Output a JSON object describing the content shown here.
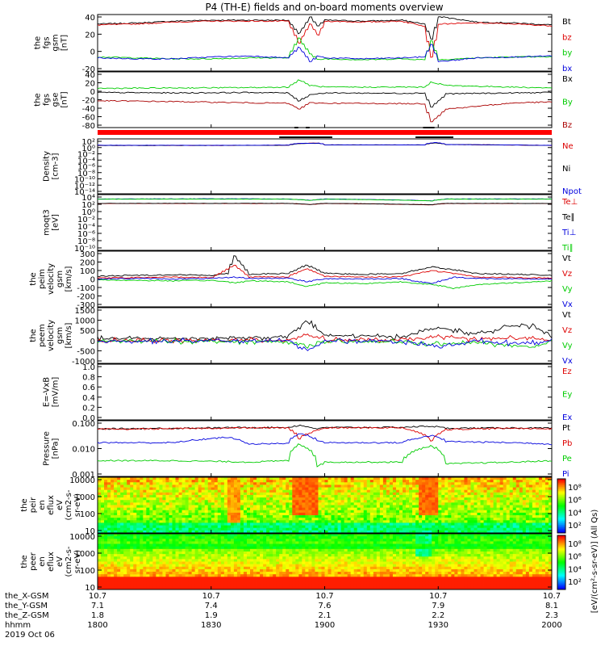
{
  "title": "P4 (TH-E) fields and on-board moments overview",
  "chart_data": [
    {
      "type": "line",
      "panel": "fgs-gsm",
      "ylabel": [
        "the",
        "fgs",
        "gsm",
        "[nT]"
      ],
      "ylim": [
        -20,
        40
      ],
      "yticks": [
        "40",
        "20",
        "0",
        "-20"
      ],
      "x_range_hhmm": [
        "1800",
        "2000"
      ],
      "series": [
        {
          "name": "Bt",
          "color": "#000000",
          "x": [
            1800,
            1810,
            1820,
            1830,
            1840,
            1850,
            1853,
            1856,
            1858,
            1900,
            1910,
            1920,
            1926,
            1928,
            1930,
            1940,
            1950,
            2000
          ],
          "y": [
            30,
            31,
            33,
            34,
            34,
            34,
            20,
            37,
            28,
            34,
            33,
            34,
            30,
            14,
            38,
            32,
            31,
            29
          ]
        },
        {
          "name": "bz",
          "color": "#dd0000",
          "x": [
            1800,
            1810,
            1820,
            1830,
            1840,
            1850,
            1853,
            1856,
            1858,
            1900,
            1910,
            1920,
            1926,
            1928,
            1930,
            1940,
            1950,
            2000
          ],
          "y": [
            29,
            30,
            32,
            33,
            33,
            33,
            10,
            30,
            18,
            33,
            32,
            33,
            28,
            -5,
            30,
            31,
            30,
            28
          ]
        },
        {
          "name": "by",
          "color": "#00cc00",
          "x": [
            1800,
            1810,
            1820,
            1830,
            1840,
            1850,
            1853,
            1856,
            1858,
            1900,
            1910,
            1920,
            1926,
            1928,
            1930,
            1940,
            1950,
            2000
          ],
          "y": [
            -5,
            -6,
            -7,
            -7,
            -6,
            -6,
            15,
            -2,
            -8,
            -7,
            -8,
            -7,
            -8,
            12,
            -8,
            -6,
            -5,
            -5
          ]
        },
        {
          "name": "bx",
          "color": "#0000dd",
          "x": [
            1800,
            1810,
            1820,
            1830,
            1840,
            1850,
            1853,
            1856,
            1858,
            1900,
            1910,
            1920,
            1926,
            1928,
            1930,
            1940,
            1950,
            2000
          ],
          "y": [
            -6,
            -7,
            -7,
            -5,
            -4,
            -6,
            5,
            -10,
            -4,
            -6,
            -7,
            -6,
            -5,
            8,
            -10,
            -6,
            -5,
            -4
          ]
        }
      ]
    },
    {
      "type": "line",
      "panel": "fgs-gse",
      "ylabel": [
        "the",
        "fgs",
        "gse",
        "[nT]"
      ],
      "ylim": [
        -90,
        45
      ],
      "yticks": [
        "40",
        "20",
        "0",
        "-20",
        "-40",
        "-60",
        "-80"
      ],
      "series": [
        {
          "name": "Bx",
          "color": "#000000",
          "x": [
            1800,
            1820,
            1840,
            1850,
            1853,
            1856,
            1900,
            1920,
            1926,
            1928,
            1932,
            1950,
            2000
          ],
          "y": [
            -5,
            -6,
            -5,
            -6,
            -25,
            -10,
            -6,
            -7,
            -6,
            -40,
            -8,
            -6,
            -5
          ]
        },
        {
          "name": "By",
          "color": "#00cc00",
          "x": [
            1800,
            1820,
            1840,
            1850,
            1853,
            1856,
            1900,
            1920,
            1926,
            1928,
            1932,
            1950,
            2000
          ],
          "y": [
            5,
            6,
            7,
            8,
            25,
            12,
            8,
            8,
            8,
            20,
            12,
            8,
            6
          ]
        },
        {
          "name": "Bz",
          "color": "#aa0000",
          "x": [
            1800,
            1820,
            1840,
            1850,
            1853,
            1856,
            1900,
            1920,
            1926,
            1928,
            1932,
            1950,
            2000
          ],
          "y": [
            -25,
            -27,
            -30,
            -31,
            -45,
            -30,
            -31,
            -32,
            -32,
            -75,
            -45,
            -30,
            -28
          ]
        }
      ]
    },
    {
      "type": "line",
      "panel": "density",
      "ylabel": [
        "Density",
        "[cm-3]"
      ],
      "yscale": "log",
      "yticks": [
        "10²",
        "10⁰",
        "10⁻²",
        "10⁻⁴",
        "10⁻⁶",
        "10⁻⁸",
        "10⁻¹⁰",
        "10⁻¹²",
        "10⁻¹⁴"
      ],
      "series": [
        {
          "name": "Ne",
          "color": "#dd0000",
          "x": [
            1800,
            1830,
            1850,
            1853,
            1858,
            1900,
            1926,
            1929,
            1932,
            2000
          ],
          "y": [
            1,
            1,
            1.2,
            5,
            6,
            1.5,
            1.5,
            8,
            2,
            1
          ]
        },
        {
          "name": "Ni",
          "color": "#000000",
          "x": [
            1800,
            1830,
            1850,
            1853,
            1858,
            1900,
            1926,
            1929,
            1932,
            2000
          ],
          "y": [
            1,
            1,
            1.2,
            4,
            5,
            1.5,
            1.5,
            7,
            2,
            1
          ]
        },
        {
          "name": "Npot",
          "color": "#0000dd",
          "x": [
            1800,
            1830,
            1850,
            1853,
            1858,
            1900,
            1926,
            1929,
            1932,
            2000
          ],
          "y": [
            1.2,
            1.1,
            1.3,
            5,
            6,
            1.6,
            1.6,
            9,
            2,
            1.1
          ]
        }
      ]
    },
    {
      "type": "line",
      "panel": "temperature",
      "ylabel": [
        "moqt3",
        "[eV]"
      ],
      "yscale": "log",
      "yticks": [
        "10⁴",
        "10²",
        "10⁰",
        "10⁻²",
        "10⁻⁴",
        "10⁻⁶",
        "10⁻⁸",
        "10⁻¹⁰"
      ],
      "series": [
        {
          "name": "Te⊥",
          "color": "#dd0000",
          "x": [
            1800,
            1830,
            1850,
            1856,
            1900,
            1928,
            1932,
            2000
          ],
          "y": [
            20,
            20,
            20,
            10,
            20,
            8,
            20,
            20
          ]
        },
        {
          "name": "Te∥",
          "color": "#000000",
          "x": [
            1800,
            1830,
            1850,
            1856,
            1900,
            1928,
            1932,
            2000
          ],
          "y": [
            22,
            22,
            22,
            11,
            22,
            9,
            22,
            22
          ]
        },
        {
          "name": "Ti⊥",
          "color": "#0000dd",
          "x": [
            1800,
            1830,
            1850,
            1856,
            1900,
            1928,
            1932,
            2000
          ],
          "y": [
            400,
            450,
            400,
            150,
            400,
            120,
            400,
            420
          ]
        },
        {
          "name": "Ti∥",
          "color": "#00cc00",
          "x": [
            1800,
            1830,
            1850,
            1856,
            1900,
            1928,
            1932,
            2000
          ],
          "y": [
            350,
            380,
            350,
            150,
            350,
            110,
            350,
            360
          ]
        }
      ]
    },
    {
      "type": "line",
      "panel": "peim-velocity",
      "ylabel": [
        "the",
        "peim",
        "velocity",
        "gsm",
        "[km/s]"
      ],
      "ylim": [
        -300,
        300
      ],
      "yticks": [
        "300",
        "200",
        "100",
        "0",
        "-100",
        "-200",
        "-300"
      ],
      "series": [
        {
          "name": "Vt",
          "color": "#000000",
          "x": [
            1800,
            1810,
            1820,
            1830,
            1834,
            1836,
            1840,
            1850,
            1855,
            1900,
            1910,
            1920,
            1928,
            1934,
            1940,
            1950,
            2000
          ],
          "y": [
            30,
            40,
            45,
            40,
            60,
            250,
            50,
            60,
            150,
            60,
            50,
            60,
            130,
            100,
            60,
            50,
            40
          ]
        },
        {
          "name": "Vz",
          "color": "#dd0000",
          "x": [
            1800,
            1810,
            1820,
            1830,
            1836,
            1840,
            1850,
            1855,
            1900,
            1910,
            1920,
            1928,
            1934,
            1940,
            1950,
            2000
          ],
          "y": [
            10,
            15,
            20,
            15,
            150,
            20,
            25,
            110,
            30,
            20,
            25,
            90,
            60,
            20,
            15,
            10
          ]
        },
        {
          "name": "Vy",
          "color": "#00cc00",
          "x": [
            1800,
            1810,
            1820,
            1830,
            1836,
            1840,
            1850,
            1855,
            1900,
            1910,
            1920,
            1928,
            1934,
            1940,
            1950,
            2000
          ],
          "y": [
            -10,
            -15,
            -20,
            -15,
            -40,
            -20,
            -30,
            -80,
            -40,
            -50,
            -30,
            -60,
            -100,
            -60,
            -40,
            -20
          ]
        },
        {
          "name": "Vx",
          "color": "#0000dd",
          "x": [
            1800,
            1810,
            1820,
            1830,
            1836,
            1840,
            1850,
            1855,
            1900,
            1910,
            1920,
            1928,
            1934,
            1940,
            1950,
            2000
          ],
          "y": [
            0,
            5,
            0,
            5,
            20,
            5,
            10,
            -30,
            5,
            0,
            5,
            -50,
            20,
            5,
            0,
            0
          ]
        }
      ]
    },
    {
      "type": "line",
      "panel": "peem-velocity",
      "ylabel": [
        "the",
        "peem",
        "velocity",
        "gsm",
        "[km/s]"
      ],
      "ylim": [
        -1000,
        1500
      ],
      "yticks": [
        "1500",
        "1000",
        "500",
        "0",
        "-500",
        "-1000"
      ],
      "series": [
        {
          "name": "Vt",
          "color": "#000000",
          "x": [
            1800,
            1820,
            1840,
            1850,
            1855,
            1900,
            1920,
            1930,
            1940,
            1948,
            1955,
            2000
          ],
          "y": [
            100,
            120,
            150,
            200,
            900,
            250,
            200,
            600,
            300,
            700,
            650,
            150
          ]
        },
        {
          "name": "Vz",
          "color": "#dd0000",
          "x": [
            1800,
            1820,
            1840,
            1850,
            1855,
            1900,
            1920,
            1930,
            1940,
            1950,
            2000
          ],
          "y": [
            20,
            30,
            40,
            50,
            300,
            60,
            40,
            200,
            80,
            150,
            30
          ]
        },
        {
          "name": "Vy",
          "color": "#00cc00",
          "x": [
            1800,
            1820,
            1840,
            1850,
            1855,
            1900,
            1920,
            1930,
            1940,
            1955,
            2000
          ],
          "y": [
            0,
            -10,
            -20,
            -30,
            -200,
            -40,
            -30,
            -150,
            -60,
            -300,
            -10
          ]
        },
        {
          "name": "Vx",
          "color": "#0000dd",
          "x": [
            1800,
            1820,
            1840,
            1850,
            1855,
            1900,
            1920,
            1930,
            1940,
            1950,
            2000
          ],
          "y": [
            0,
            10,
            5,
            10,
            -400,
            10,
            5,
            -250,
            10,
            -100,
            0
          ]
        }
      ]
    },
    {
      "type": "line",
      "panel": "e-field",
      "ylabel": [
        "E=-VxB",
        "[mV/m]"
      ],
      "ylim": [
        0,
        1
      ],
      "yticks": [
        "1.0",
        "0.8",
        "0.6",
        "0.4",
        "0.2",
        "0.0"
      ],
      "series": [
        {
          "name": "Ez",
          "color": "#dd0000",
          "x": [],
          "y": []
        },
        {
          "name": "Ey",
          "color": "#00cc00",
          "x": [],
          "y": []
        },
        {
          "name": "Ex",
          "color": "#0000dd",
          "x": [],
          "y": []
        }
      ]
    },
    {
      "type": "line",
      "panel": "pressure",
      "ylabel": [
        "Pressure",
        "[nPa]"
      ],
      "yscale": "log",
      "ylim": [
        0.0008,
        1
      ],
      "yticks": [
        "0.100",
        "0.010",
        "0.001"
      ],
      "series": [
        {
          "name": "Pt",
          "color": "#000000",
          "x": [
            1800,
            1820,
            1840,
            1850,
            1853,
            1858,
            1900,
            1920,
            1928,
            1932,
            1950,
            2000
          ],
          "y": [
            0.35,
            0.38,
            0.42,
            0.42,
            0.55,
            0.35,
            0.42,
            0.43,
            0.5,
            0.38,
            0.4,
            0.38
          ]
        },
        {
          "name": "Pb",
          "color": "#dd0000",
          "x": [
            1800,
            1820,
            1840,
            1850,
            1853,
            1858,
            1900,
            1920,
            1928,
            1932,
            1950,
            2000
          ],
          "y": [
            0.33,
            0.36,
            0.4,
            0.4,
            0.1,
            0.3,
            0.4,
            0.41,
            0.08,
            0.33,
            0.38,
            0.35
          ]
        },
        {
          "name": "Pe",
          "color": "#00cc00",
          "x": [
            1800,
            1820,
            1840,
            1850,
            1853,
            1858,
            1900,
            1920,
            1928,
            1932,
            1950,
            2000
          ],
          "y": [
            0.006,
            0.006,
            0.005,
            0.006,
            0.05,
            0.003,
            0.005,
            0.005,
            0.04,
            0.004,
            0.005,
            0.006
          ]
        },
        {
          "name": "Pi",
          "color": "#0000dd",
          "x": [
            1800,
            1820,
            1834,
            1840,
            1850,
            1853,
            1858,
            1900,
            1920,
            1928,
            1932,
            1950,
            2000
          ],
          "y": [
            0.06,
            0.06,
            0.12,
            0.05,
            0.055,
            0.2,
            0.08,
            0.06,
            0.06,
            0.15,
            0.07,
            0.06,
            0.05
          ]
        }
      ]
    },
    {
      "type": "heatmap",
      "panel": "peir-spectrogram",
      "ylabel": [
        "the",
        "peir",
        "en",
        "eflux",
        "eV",
        "(cm2-s-",
        "sr-eV)"
      ],
      "yscale": "log",
      "yticks": [
        "10000",
        "1000",
        "100",
        "10"
      ]
    },
    {
      "type": "heatmap",
      "panel": "peer-spectrogram",
      "ylabel": [
        "the",
        "peer",
        "en",
        "eflux",
        "eV",
        "(cm2-s-",
        "sr-eV)"
      ],
      "yscale": "log",
      "yticks": [
        "10000",
        "1000",
        "100",
        "10"
      ]
    }
  ],
  "colorbar": {
    "label": "[eV/(cm²-s-sr-eV)] (All Qs)",
    "ticks_top": [
      "10⁸",
      "10⁶",
      "10⁴",
      "10²"
    ],
    "ticks_bottom": [
      "10⁸",
      "10⁶",
      "10⁴",
      "10²"
    ]
  },
  "x_axis": {
    "row_labels": [
      "the_X-GSM",
      "the_Y-GSM",
      "the_Z-GSM",
      "hhmm",
      "2019 Oct 06"
    ],
    "ticks": [
      {
        "x": "10.7",
        "y": "7.1",
        "z": "1.8",
        "hhmm": "1800"
      },
      {
        "x": "10.7",
        "y": "7.4",
        "z": "1.9",
        "hhmm": "1830"
      },
      {
        "x": "10.7",
        "y": "7.6",
        "z": "2.1",
        "hhmm": "1900"
      },
      {
        "x": "10.7",
        "y": "7.9",
        "z": "2.2",
        "hhmm": "1930"
      },
      {
        "x": "10.7",
        "y": "8.1",
        "z": "2.3",
        "hhmm": "2000"
      }
    ]
  }
}
